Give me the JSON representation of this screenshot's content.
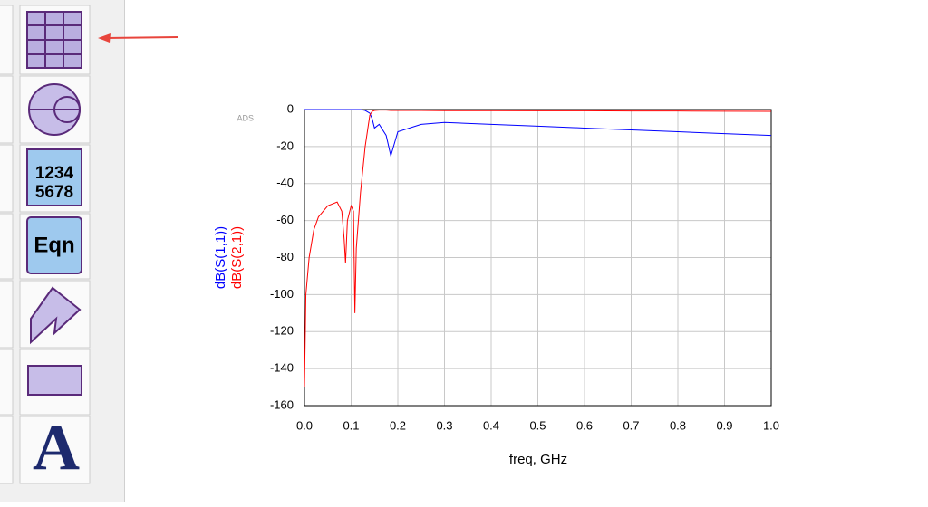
{
  "palette": {
    "labels": [
      "1234",
      "5678",
      "Eqn",
      "A"
    ]
  },
  "chart_data": {
    "type": "line",
    "annotation": "ADS",
    "x_label": "freq, GHz",
    "x": [
      0,
      0.003,
      0.01,
      0.02,
      0.03,
      0.05,
      0.07,
      0.08,
      0.085,
      0.088,
      0.092,
      0.1,
      0.105,
      0.108,
      0.111,
      0.12,
      0.13,
      0.14,
      0.145,
      0.15,
      0.16,
      0.175,
      0.185,
      0.2,
      0.25,
      0.3,
      0.4,
      0.5,
      0.6,
      0.7,
      0.8,
      0.9,
      1.0
    ],
    "series": [
      {
        "name": "dB(S(1,1))",
        "color": "#0000ff",
        "values": [
          0,
          0,
          0,
          0,
          0,
          0,
          0,
          0,
          0,
          0,
          0,
          0,
          0,
          0,
          0,
          0,
          -0.5,
          -2,
          -5,
          -10,
          -8,
          -14,
          -25,
          -12,
          -8,
          -7,
          -8,
          -9,
          -10,
          -11,
          -12,
          -13,
          -14
        ]
      },
      {
        "name": "dB(S(2,1))",
        "color": "#ff0000",
        "values": [
          -150,
          -100,
          -80,
          -65,
          -58,
          -52,
          -50,
          -55,
          -70,
          -83,
          -60,
          -52,
          -55,
          -110,
          -75,
          -45,
          -20,
          -3,
          -1,
          -0.5,
          -0.3,
          -0.3,
          -0.5,
          -0.5,
          -0.5,
          -0.6,
          -0.6,
          -0.7,
          -0.7,
          -0.8,
          -0.8,
          -0.9,
          -1
        ]
      }
    ],
    "xlim": [
      0,
      1.0
    ],
    "xticks": [
      {
        "value": 0,
        "label": "0.0"
      },
      0.1,
      0.2,
      0.3,
      0.4,
      0.5,
      0.6,
      0.7,
      0.8,
      0.9,
      {
        "value": 1.0,
        "label": "1.0"
      }
    ],
    "ylim": [
      -160,
      0
    ],
    "yticks": [
      -160,
      -140,
      -120,
      -100,
      -80,
      -60,
      -40,
      -20,
      0
    ],
    "grid": true
  }
}
